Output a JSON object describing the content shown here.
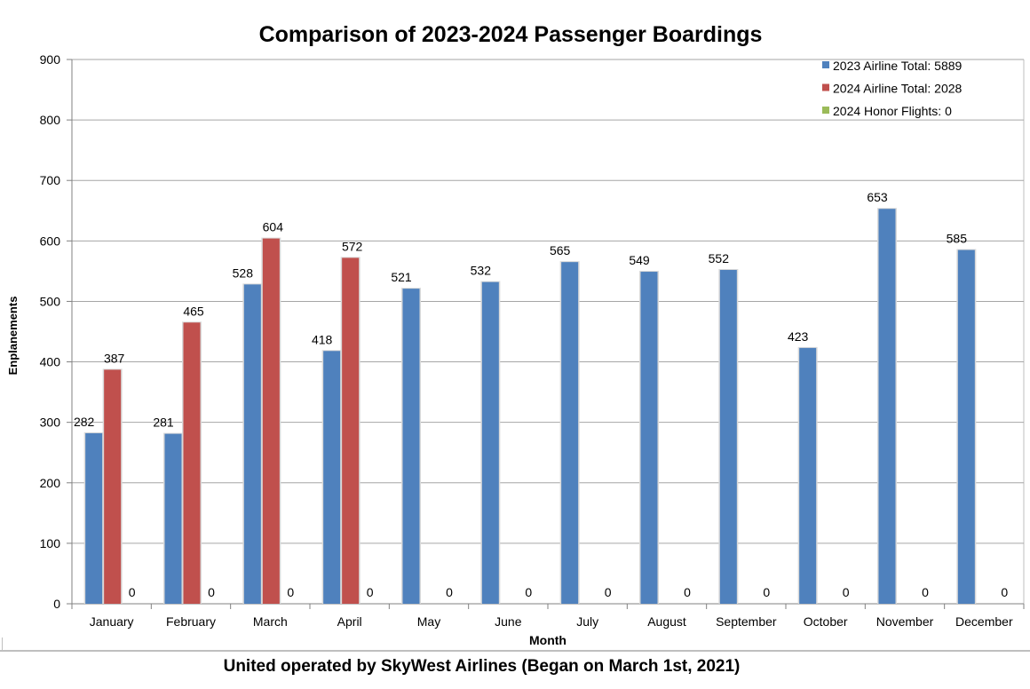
{
  "chart_data": {
    "type": "bar",
    "title": "Comparison of 2023-2024 Passenger Boardings",
    "xlabel": "Month",
    "ylabel": "Enplanements",
    "ylim": [
      0,
      900
    ],
    "yticks": [
      0,
      100,
      200,
      300,
      400,
      500,
      600,
      700,
      800,
      900
    ],
    "grid": true,
    "legend_position": "top-right",
    "categories": [
      "January",
      "February",
      "March",
      "April",
      "May",
      "June",
      "July",
      "August",
      "September",
      "October",
      "November",
      "December"
    ],
    "series": [
      {
        "name": "2023 Airline Total: 5889",
        "color": "#4f81bd",
        "values": [
          282,
          281,
          528,
          418,
          521,
          532,
          565,
          549,
          552,
          423,
          653,
          585
        ],
        "labels": [
          "282",
          "281",
          "528",
          "418",
          "521",
          "532",
          "565",
          "549",
          "552",
          "423",
          "653",
          "585"
        ]
      },
      {
        "name": "2024 Airline Total: 2028",
        "color": "#c0504d",
        "values": [
          387,
          465,
          604,
          572,
          null,
          null,
          null,
          null,
          null,
          null,
          null,
          null
        ],
        "labels": [
          "387",
          "465",
          "604",
          "572",
          null,
          null,
          null,
          null,
          null,
          null,
          null,
          null
        ]
      },
      {
        "name": "2024 Honor Flights: 0",
        "color": "#9bbb59",
        "values": [
          0,
          0,
          0,
          0,
          0,
          0,
          0,
          0,
          0,
          0,
          0,
          0
        ],
        "labels": [
          "0",
          "0",
          "0",
          "0",
          "0",
          "0",
          "0",
          "0",
          "0",
          "0",
          "0",
          "0"
        ]
      }
    ]
  },
  "footer": "United operated by SkyWest Airlines (Began on March 1st, 2021)"
}
